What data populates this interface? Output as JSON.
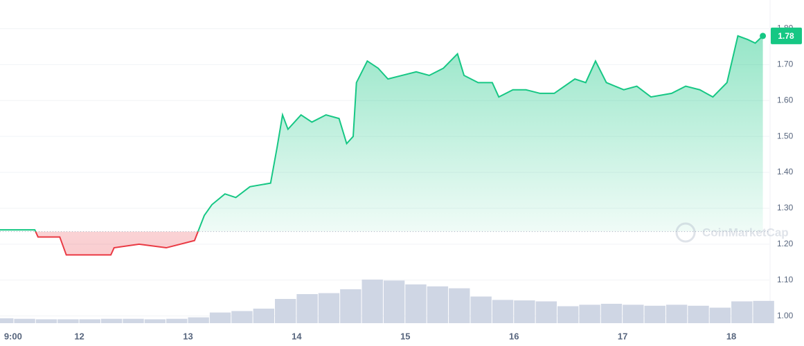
{
  "chart_data": {
    "type": "line",
    "x": [
      11.27,
      11.59,
      11.62,
      11.82,
      11.88,
      12.1,
      12.29,
      12.32,
      12.55,
      12.8,
      13.06,
      13.15,
      13.22,
      13.34,
      13.44,
      13.57,
      13.76,
      13.82,
      13.87,
      13.92,
      14.04,
      14.14,
      14.27,
      14.39,
      14.46,
      14.52,
      14.55,
      14.65,
      14.75,
      14.84,
      14.97,
      15.1,
      15.22,
      15.35,
      15.48,
      15.54,
      15.67,
      15.8,
      15.86,
      15.99,
      16.11,
      16.24,
      16.37,
      16.56,
      16.66,
      16.75,
      16.85,
      17.01,
      17.13,
      17.26,
      17.45,
      17.58,
      17.71,
      17.83,
      17.96,
      18.06,
      18.15,
      18.22,
      18.29
    ],
    "series": [
      {
        "color": "#16c784",
        "down_color": "#ea3943",
        "values": [
          1.24,
          1.24,
          1.22,
          1.22,
          1.17,
          1.17,
          1.17,
          1.19,
          1.2,
          1.19,
          1.21,
          1.28,
          1.31,
          1.34,
          1.33,
          1.36,
          1.37,
          1.47,
          1.56,
          1.52,
          1.56,
          1.54,
          1.56,
          1.55,
          1.48,
          1.5,
          1.65,
          1.71,
          1.69,
          1.66,
          1.67,
          1.68,
          1.67,
          1.69,
          1.73,
          1.67,
          1.65,
          1.65,
          1.61,
          1.63,
          1.63,
          1.62,
          1.62,
          1.66,
          1.65,
          1.71,
          1.65,
          1.63,
          1.64,
          1.61,
          1.62,
          1.64,
          1.63,
          1.61,
          1.65,
          1.78,
          1.77,
          1.76,
          1.78
        ]
      }
    ],
    "baseline": 1.235,
    "price_label": "1.78",
    "watermark": "CoinMarketCap",
    "xlim": [
      11.27,
      18.35
    ],
    "xticks": [
      {
        "value": 11.39,
        "label": "9:00"
      },
      12,
      13,
      14,
      15,
      16,
      17,
      18
    ],
    "ylim": [
      0.98,
      1.88
    ],
    "yticks": [
      {
        "value": 1.8,
        "label": "1.80"
      },
      {
        "value": 1.7,
        "label": "1.70"
      },
      {
        "value": 1.6,
        "label": "1.60"
      },
      {
        "value": 1.5,
        "label": "1.50"
      },
      {
        "value": 1.4,
        "label": "1.40"
      },
      {
        "value": 1.3,
        "label": "1.30"
      },
      {
        "value": 1.2,
        "label": "1.20"
      },
      {
        "value": 1.1,
        "label": "1.10"
      },
      {
        "value": 1,
        "label": "1.00"
      }
    ],
    "grid": true,
    "volume": {
      "color": "#cfd6e4",
      "vlim": [
        0,
        100
      ],
      "x": [
        11.3,
        11.5,
        11.7,
        11.9,
        12.1,
        12.3,
        12.5,
        12.7,
        12.9,
        13.1,
        13.3,
        13.5,
        13.7,
        13.9,
        14.1,
        14.3,
        14.5,
        14.7,
        14.9,
        15.1,
        15.3,
        15.5,
        15.7,
        15.9,
        16.1,
        16.3,
        16.5,
        16.7,
        16.9,
        17.1,
        17.3,
        17.5,
        17.7,
        17.9,
        18.1,
        18.3
      ],
      "values": [
        10,
        9,
        8,
        8,
        8,
        9,
        9,
        8,
        9,
        12,
        22,
        25,
        30,
        50,
        60,
        62,
        70,
        90,
        88,
        80,
        76,
        72,
        55,
        48,
        47,
        45,
        35,
        38,
        40,
        38,
        36,
        38,
        36,
        32,
        45,
        46
      ]
    }
  }
}
